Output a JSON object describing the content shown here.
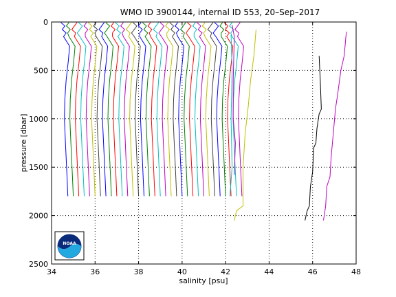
{
  "chart_data": {
    "type": "line",
    "title": "WMO ID 3900144, internal ID 553, 20–Sep–2017",
    "xlabel": "salinity [psu]",
    "ylabel": "pressure [dbar]",
    "xlim": [
      34,
      48
    ],
    "ylim": [
      0,
      2500
    ],
    "y_reversed": true,
    "grid": "dotted",
    "x_ticks": [
      34,
      36,
      38,
      40,
      42,
      44,
      46,
      48
    ],
    "y_ticks": [
      0,
      500,
      1000,
      1500,
      2000,
      2500
    ],
    "profile_offset_psu": 0.25,
    "series_colors": [
      "#0000ff",
      "#008000",
      "#ff0000",
      "#00bfbf",
      "#bf00bf",
      "#bfbf00",
      "#404040"
    ],
    "regular_profiles": {
      "count": 33,
      "first_surface_salinity": 34.55,
      "pressure_levels": [
        150,
        250,
        400,
        600,
        800,
        1000,
        1200,
        1400,
        1600,
        1800
      ],
      "salinity_anomaly": [
        0.0,
        0.28,
        0.22,
        0.12,
        0.06,
        0.04,
        0.08,
        0.12,
        0.16,
        0.2
      ],
      "surface_wiggle_points": 4
    },
    "special_profiles": [
      {
        "color": "#bf00bf",
        "points": [
          [
            42.3,
            30
          ],
          [
            42.4,
            150
          ],
          [
            42.35,
            600
          ],
          [
            42.35,
            1000
          ],
          [
            42.45,
            1250
          ],
          [
            42.4,
            1580
          ]
        ]
      },
      {
        "color": "#00bfbf",
        "points": [
          [
            42.25,
            130
          ],
          [
            42.3,
            500
          ],
          [
            42.25,
            1000
          ],
          [
            42.3,
            1500
          ],
          [
            42.2,
            1800
          ]
        ]
      },
      {
        "color": "#bfbf00",
        "points": [
          [
            43.4,
            80
          ],
          [
            43.3,
            350
          ],
          [
            43.15,
            600
          ],
          [
            43.05,
            850
          ],
          [
            42.9,
            1150
          ],
          [
            42.8,
            1500
          ],
          [
            42.8,
            1900
          ],
          [
            42.5,
            1950
          ],
          [
            42.4,
            2050
          ]
        ]
      },
      {
        "color": "#000000",
        "points": [
          [
            46.3,
            350
          ],
          [
            46.35,
            600
          ],
          [
            46.4,
            900
          ],
          [
            46.3,
            950
          ],
          [
            46.2,
            1100
          ],
          [
            46.15,
            1250
          ],
          [
            46.05,
            1300
          ],
          [
            46.0,
            1550
          ],
          [
            45.9,
            1700
          ],
          [
            45.85,
            1900
          ],
          [
            45.75,
            1950
          ],
          [
            45.65,
            2050
          ]
        ]
      },
      {
        "color": "#bf00bf",
        "points": [
          [
            47.55,
            100
          ],
          [
            47.45,
            350
          ],
          [
            47.3,
            500
          ],
          [
            47.15,
            750
          ],
          [
            47.05,
            900
          ],
          [
            46.95,
            1150
          ],
          [
            46.85,
            1400
          ],
          [
            46.8,
            1600
          ],
          [
            46.65,
            1700
          ],
          [
            46.6,
            1900
          ],
          [
            46.5,
            2050
          ]
        ]
      }
    ]
  },
  "logo": {
    "text": "NOAA"
  }
}
